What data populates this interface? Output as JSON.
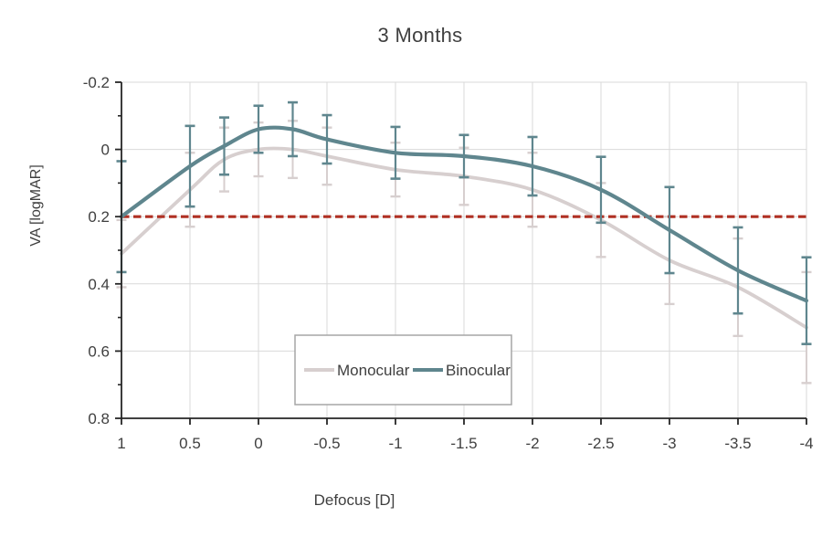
{
  "chart_data": {
    "type": "line",
    "title": "3 Months",
    "xlabel": "Defocus [D]",
    "ylabel": "VA [logMAR]",
    "xlim": [
      1,
      -4
    ],
    "ylim": [
      -0.2,
      0.8
    ],
    "y_axis_direction": "increases-downward",
    "grid": true,
    "x_ticks": [
      1,
      0.5,
      0,
      -0.5,
      -1,
      -1.5,
      -2,
      -2.5,
      -3,
      -3.5,
      -4
    ],
    "x_tick_labels": [
      "1",
      "0.5",
      "0",
      "-0.5",
      "-1",
      "-1.5",
      "-2",
      "-2.5",
      "-3",
      "-3.5",
      "-4"
    ],
    "y_ticks": [
      -0.2,
      0,
      0.2,
      0.4,
      0.6,
      0.8
    ],
    "y_tick_labels": [
      "-0.2",
      "0",
      "0.2",
      "0.4",
      "0.6",
      "0.8"
    ],
    "y_minor_tick_step": 0.1,
    "x": [
      1,
      0.5,
      0.25,
      0,
      -0.25,
      -0.5,
      -1,
      -1.5,
      -2,
      -2.5,
      -3,
      -3.5,
      -4
    ],
    "series": [
      {
        "name": "Monocular",
        "color": "#d7cfcf",
        "values": [
          0.31,
          0.12,
          0.03,
          0.0,
          0.0,
          0.02,
          0.06,
          0.08,
          0.12,
          0.21,
          0.33,
          0.41,
          0.53
        ],
        "errors": [
          0.1,
          0.11,
          0.095,
          0.08,
          0.085,
          0.085,
          0.08,
          0.085,
          0.11,
          0.11,
          0.13,
          0.145,
          0.165
        ]
      },
      {
        "name": "Binocular",
        "color": "#5f868e",
        "values": [
          0.2,
          0.05,
          -0.01,
          -0.06,
          -0.06,
          -0.03,
          0.01,
          0.02,
          0.05,
          0.12,
          0.24,
          0.36,
          0.45
        ],
        "errors": [
          0.165,
          0.12,
          0.085,
          0.07,
          0.08,
          0.072,
          0.077,
          0.063,
          0.087,
          0.098,
          0.128,
          0.128,
          0.129
        ]
      }
    ],
    "reference_line": {
      "value": 0.2,
      "color": "#b03023",
      "style": "dashed"
    },
    "legend_position": "inside-bottom-center-boxed"
  },
  "colors": {
    "background": "#ffffff",
    "gridline": "#d9d9d9",
    "axis": "#262626",
    "title_text": "#3f3f3f",
    "tick_text": "#404040",
    "legend_border": "#a6a6a6"
  }
}
